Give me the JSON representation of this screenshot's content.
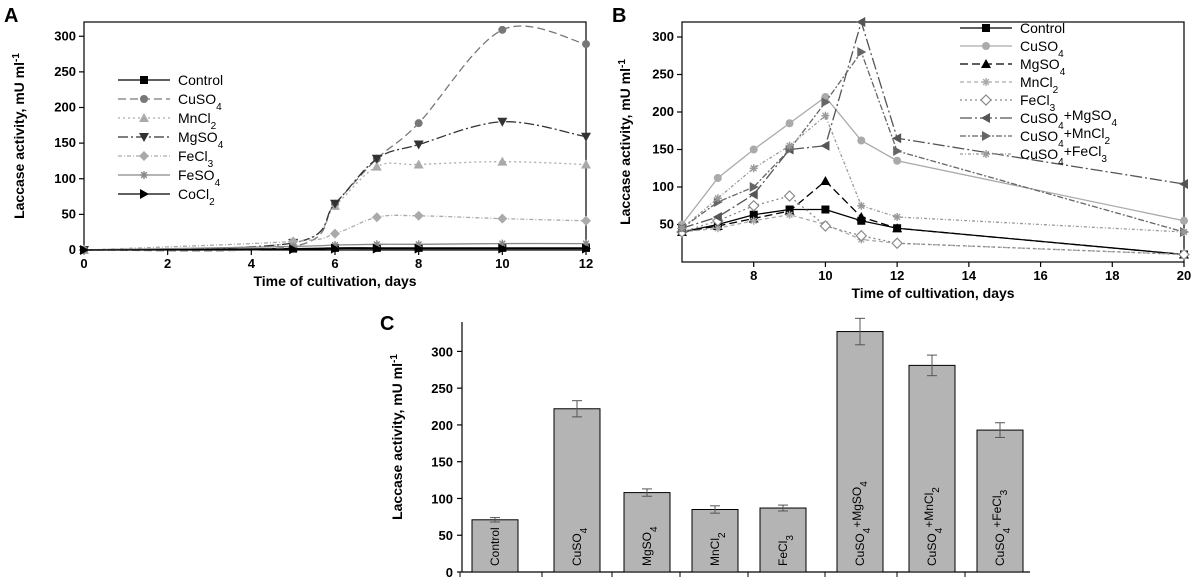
{
  "chart_data": [
    {
      "type": "line",
      "panel": "A",
      "xlabel": "Time of cultivation, days",
      "ylabel": "Laccase activity, mU ml",
      "ylabel_sup": "-1",
      "xlim": [
        0,
        12
      ],
      "ylim": [
        0,
        320
      ],
      "xticks": [
        "0",
        "2",
        "4",
        "6",
        "8",
        "10",
        "12"
      ],
      "yticks": [
        "0",
        "50",
        "100",
        "150",
        "200",
        "250",
        "300"
      ],
      "legend_position": "left-center",
      "series": [
        {
          "name": "Control",
          "sub": "",
          "color": "#000000",
          "dash": "",
          "marker": "square",
          "points": [
            [
              0,
              0
            ],
            [
              5,
              2
            ],
            [
              6,
              3
            ],
            [
              7,
              3
            ],
            [
              8,
              3
            ],
            [
              10,
              3
            ],
            [
              12,
              3
            ]
          ]
        },
        {
          "name": "CuSO",
          "sub": "4",
          "color": "#777777",
          "dash": "8,4",
          "marker": "circle",
          "points": [
            [
              0,
              0
            ],
            [
              5,
              5
            ],
            [
              6,
              65
            ],
            [
              7,
              128
            ],
            [
              8,
              178
            ],
            [
              10,
              309
            ],
            [
              12,
              289
            ]
          ]
        },
        {
          "name": "MnCl",
          "sub": "2",
          "color": "#aaaaaa",
          "dash": "2,3",
          "marker": "triangle-up",
          "points": [
            [
              0,
              0
            ],
            [
              5,
              10
            ],
            [
              6,
              62
            ],
            [
              7,
              117
            ],
            [
              8,
              120
            ],
            [
              10,
              124
            ],
            [
              12,
              120
            ]
          ]
        },
        {
          "name": "MgSO",
          "sub": "4",
          "color": "#333333",
          "dash": "10,3,2,3",
          "marker": "triangle-down",
          "points": [
            [
              0,
              0
            ],
            [
              5,
              10
            ],
            [
              6,
              65
            ],
            [
              7,
              128
            ],
            [
              8,
              148
            ],
            [
              10,
              180
            ],
            [
              12,
              159
            ]
          ]
        },
        {
          "name": "FeCl",
          "sub": "3",
          "color": "#aaaaaa",
          "dash": "4,2,1,2",
          "marker": "diamond",
          "points": [
            [
              0,
              0
            ],
            [
              5,
              12
            ],
            [
              6,
              23
            ],
            [
              7,
              46
            ],
            [
              8,
              48
            ],
            [
              10,
              44
            ],
            [
              12,
              41
            ]
          ]
        },
        {
          "name": "FeSO",
          "sub": "4",
          "color": "#888888",
          "dash": "",
          "marker": "asterisk",
          "points": [
            [
              0,
              0
            ],
            [
              5,
              5
            ],
            [
              6,
              7
            ],
            [
              7,
              8
            ],
            [
              8,
              8
            ],
            [
              10,
              9
            ],
            [
              12,
              9
            ]
          ]
        },
        {
          "name": "CoCl",
          "sub": "2",
          "color": "#000000",
          "dash": "",
          "marker": "triangle-right",
          "points": [
            [
              0,
              0
            ],
            [
              5,
              1
            ],
            [
              6,
              2
            ],
            [
              7,
              2
            ],
            [
              8,
              2
            ],
            [
              10,
              2
            ],
            [
              12,
              2
            ]
          ]
        }
      ]
    },
    {
      "type": "line",
      "panel": "B",
      "xlabel": "Time of cultivation, days",
      "ylabel": "Laccase activity, mU ml",
      "ylabel_sup": "-1",
      "xlim": [
        6,
        20
      ],
      "ylim": [
        0,
        320
      ],
      "xticks": [
        "8",
        "10",
        "12",
        "14",
        "16",
        "18",
        "20"
      ],
      "yticks": [
        "50",
        "100",
        "150",
        "200",
        "250",
        "300"
      ],
      "legend_position": "top-right",
      "series": [
        {
          "name": "Control",
          "sub": "",
          "tail": "",
          "color": "#000000",
          "dash": "",
          "marker": "square",
          "points": [
            [
              6,
              40
            ],
            [
              7,
              50
            ],
            [
              8,
              63
            ],
            [
              9,
              70
            ],
            [
              10,
              70
            ],
            [
              11,
              55
            ],
            [
              12,
              45
            ],
            [
              20,
              10
            ]
          ]
        },
        {
          "name": "CuSO",
          "sub": "4",
          "tail": "",
          "color": "#aaaaaa",
          "dash": "",
          "marker": "circle",
          "points": [
            [
              6,
              50
            ],
            [
              7,
              112
            ],
            [
              8,
              150
            ],
            [
              9,
              185
            ],
            [
              10,
              220
            ],
            [
              11,
              162
            ],
            [
              12,
              135
            ],
            [
              20,
              55
            ]
          ]
        },
        {
          "name": "MgSO",
          "sub": "4",
          "tail": "",
          "color": "#000000",
          "dash": "8,4",
          "marker": "triangle-up",
          "points": [
            [
              6,
              40
            ],
            [
              7,
              48
            ],
            [
              8,
              58
            ],
            [
              9,
              68
            ],
            [
              10,
              108
            ],
            [
              11,
              60
            ],
            [
              12,
              45
            ],
            [
              20,
              10
            ]
          ]
        },
        {
          "name": "MnCl",
          "sub": "2",
          "tail": "",
          "color": "#aaaaaa",
          "dash": "4,3",
          "marker": "star",
          "points": [
            [
              6,
              40
            ],
            [
              7,
              45
            ],
            [
              8,
              55
            ],
            [
              9,
              63
            ],
            [
              10,
              50
            ],
            [
              11,
              30
            ],
            [
              12,
              25
            ],
            [
              20,
              10
            ]
          ]
        },
        {
          "name": "FeCl",
          "sub": "3",
          "tail": "",
          "color": "#888888",
          "dash": "2,3",
          "marker": "diamond-open",
          "points": [
            [
              6,
              40
            ],
            [
              7,
              55
            ],
            [
              8,
              75
            ],
            [
              9,
              88
            ],
            [
              10,
              48
            ],
            [
              11,
              35
            ],
            [
              12,
              25
            ],
            [
              20,
              10
            ]
          ]
        },
        {
          "name": "CuSO",
          "sub": "4",
          "tail": "+MgSO",
          "tail_sub": "4",
          "color": "#555555",
          "dash": "12,3,2,3",
          "marker": "triangle-left",
          "points": [
            [
              6,
              45
            ],
            [
              7,
              60
            ],
            [
              8,
              90
            ],
            [
              9,
              150
            ],
            [
              10,
              155
            ],
            [
              11,
              320
            ],
            [
              12,
              165
            ],
            [
              20,
              104
            ]
          ]
        },
        {
          "name": "CuSO",
          "sub": "4",
          "tail": "+MnCl",
          "tail_sub": "2",
          "color": "#666666",
          "dash": "6,2,2,2",
          "marker": "triangle-right",
          "points": [
            [
              6,
              45
            ],
            [
              7,
              80
            ],
            [
              8,
              100
            ],
            [
              9,
              150
            ],
            [
              10,
              213
            ],
            [
              11,
              280
            ],
            [
              12,
              148
            ],
            [
              20,
              40
            ]
          ]
        },
        {
          "name": "CuSO",
          "sub": "4",
          "tail": "+FeCl",
          "tail_sub": "3",
          "color": "#999999",
          "dash": "3,2,1,2",
          "marker": "asterisk",
          "points": [
            [
              6,
              45
            ],
            [
              7,
              85
            ],
            [
              8,
              125
            ],
            [
              9,
              155
            ],
            [
              10,
              195
            ],
            [
              11,
              75
            ],
            [
              12,
              60
            ],
            [
              20,
              40
            ]
          ]
        }
      ]
    },
    {
      "type": "bar",
      "panel": "C",
      "ylabel": "Laccase activity, mU ml",
      "ylabel_sup": "-1",
      "ylim": [
        0,
        340
      ],
      "yticks": [
        "0",
        "50",
        "100",
        "150",
        "200",
        "250",
        "300"
      ],
      "bar_color": "#b4b4b4",
      "bars": [
        {
          "label": "Control",
          "sub": "",
          "tail": "",
          "tail_sub": "",
          "value": 71,
          "error": 3
        },
        {
          "label": "CuSO",
          "sub": "4",
          "tail": "",
          "tail_sub": "",
          "value": 222,
          "error": 11
        },
        {
          "label": "MgSO",
          "sub": "4",
          "tail": "",
          "tail_sub": "",
          "value": 108,
          "error": 5
        },
        {
          "label": "MnCl",
          "sub": "2",
          "tail": "",
          "tail_sub": "",
          "value": 85,
          "error": 5
        },
        {
          "label": "FeCl",
          "sub": "3",
          "tail": "",
          "tail_sub": "",
          "value": 87,
          "error": 4
        },
        {
          "label": "CuSO",
          "sub": "4",
          "tail": "+MgSO",
          "tail_sub": "4",
          "value": 327,
          "error": 18
        },
        {
          "label": "CuSO",
          "sub": "4",
          "tail": "+MnCl",
          "tail_sub": "2",
          "value": 281,
          "error": 14
        },
        {
          "label": "CuSO",
          "sub": "4",
          "tail": "+FeCl",
          "tail_sub": "3",
          "value": 193,
          "error": 10
        }
      ]
    }
  ]
}
